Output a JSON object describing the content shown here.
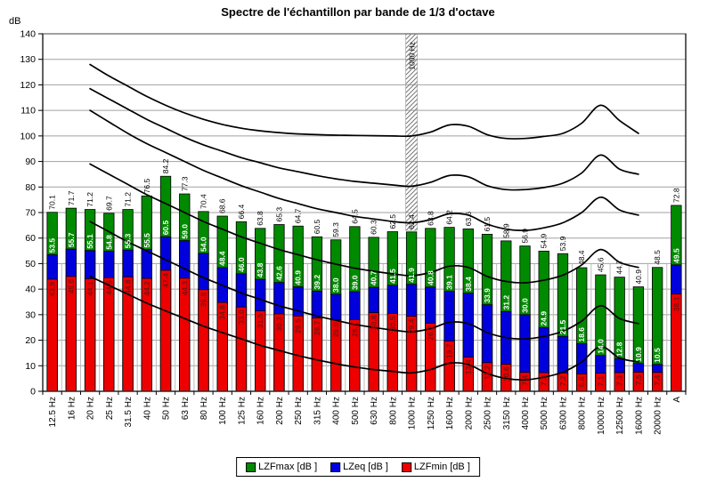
{
  "title": "Spectre de l'échantillon par bande de 1/3 d'octave",
  "y_axis": {
    "unit": "dB",
    "min": 0,
    "max": 140,
    "step": 10
  },
  "legend": [
    {
      "label": "LZFmax [dB ]",
      "color": "#008a00"
    },
    {
      "label": "LZeq [dB ]",
      "color": "#0000dd"
    },
    {
      "label": "LZFmin [dB ]",
      "color": "#ee0000"
    }
  ],
  "chart_data": {
    "type": "bar",
    "title": "Spectre de l'échantillon par bande de 1/3 d'octave",
    "ylabel": "dB",
    "xlabel": "",
    "ylim": [
      0,
      140
    ],
    "ytick_step": 10,
    "grid": true,
    "legend_position": "bottom",
    "bar_style": "overlaid: max behind, eq middle, min in front",
    "categories": [
      "12.5 Hz",
      "16 Hz",
      "20 Hz",
      "25 Hz",
      "31.5 Hz",
      "40 Hz",
      "50 Hz",
      "63 Hz",
      "80 Hz",
      "100 Hz",
      "125 Hz",
      "160 Hz",
      "200 Hz",
      "250 Hz",
      "315 Hz",
      "400 Hz",
      "500 Hz",
      "630 Hz",
      "800 Hz",
      "1000 Hz",
      "1250 Hz",
      "1600 Hz",
      "2000 Hz",
      "2500 Hz",
      "3150 Hz",
      "4000 Hz",
      "5000 Hz",
      "6300 Hz",
      "8000 Hz",
      "10000 Hz",
      "12500 Hz",
      "16000 Hz",
      "20000 Hz",
      "A"
    ],
    "series": [
      {
        "name": "LZFmax [dB ]",
        "color": "#008a00",
        "values": [
          70.1,
          71.7,
          71.2,
          69.7,
          71.2,
          76.5,
          84.2,
          77.3,
          70.4,
          68.6,
          66.4,
          63.8,
          65.3,
          64.7,
          60.5,
          59.3,
          64.5,
          60.3,
          62.5,
          62.4,
          63.8,
          64.2,
          63.6,
          61.5,
          58.9,
          56.9,
          54.9,
          53.9,
          48.4,
          45.6,
          44.7,
          40.9,
          48.5,
          72.8
        ]
      },
      {
        "name": "LZeq [dB ]",
        "color": "#0000dd",
        "values": [
          53.5,
          55.7,
          55.1,
          54.8,
          55.3,
          55.5,
          60.5,
          59.0,
          54.0,
          48.4,
          46.0,
          43.8,
          42.6,
          40.9,
          39.2,
          38.0,
          39.0,
          40.7,
          41.5,
          41.9,
          40.8,
          39.1,
          38.4,
          33.9,
          31.2,
          30.0,
          24.9,
          21.5,
          18.6,
          14.0,
          12.8,
          10.9,
          10.5,
          49.5
        ]
      },
      {
        "name": "LZFmin [dB ]",
        "color": "#ee0000",
        "values": [
          43.9,
          45.0,
          44.1,
          44.5,
          44.8,
          44.2,
          47.4,
          44.3,
          39.8,
          34.8,
          33.0,
          31.5,
          30.3,
          29.5,
          28.7,
          28.0,
          28.1,
          30.8,
          30.5,
          29.4,
          26.7,
          19.7,
          13.4,
          11.2,
          10.6,
          7.4,
          7.3,
          7.2,
          6.8,
          7.1,
          7.3,
          7.5,
          7.4,
          38.1
        ]
      }
    ],
    "highlight_band": {
      "category": "1000 Hz",
      "label": "1000 Hz",
      "from_db": 63,
      "to_db": 140,
      "style": "diagonal-hatch"
    },
    "overlay_curves": [
      {
        "points": [
          [
            2,
            128
          ],
          [
            3,
            123.5
          ],
          [
            4,
            119.5
          ],
          [
            5,
            115.5
          ],
          [
            6,
            112
          ],
          [
            7,
            109
          ],
          [
            8,
            106.5
          ],
          [
            9,
            104.5
          ],
          [
            10,
            103
          ],
          [
            11,
            102
          ],
          [
            12,
            101.3
          ],
          [
            13,
            100.8
          ],
          [
            14,
            100.5
          ],
          [
            15,
            100.3
          ],
          [
            16,
            100.2
          ],
          [
            17,
            100.1
          ],
          [
            18,
            100
          ],
          [
            19,
            100
          ],
          [
            20,
            101.5
          ],
          [
            21,
            104.3
          ],
          [
            22,
            103.8
          ],
          [
            23,
            100.5
          ],
          [
            24,
            99
          ],
          [
            25,
            99
          ],
          [
            26,
            99.8
          ],
          [
            27,
            101
          ],
          [
            28,
            105
          ],
          [
            29,
            112
          ],
          [
            30,
            106
          ],
          [
            31,
            101
          ]
        ]
      },
      {
        "points": [
          [
            2,
            118.5
          ],
          [
            3,
            114.5
          ],
          [
            4,
            110.5
          ],
          [
            5,
            106.5
          ],
          [
            6,
            103
          ],
          [
            7,
            99.5
          ],
          [
            8,
            96.5
          ],
          [
            9,
            94
          ],
          [
            10,
            91.5
          ],
          [
            11,
            89.5
          ],
          [
            12,
            87.5
          ],
          [
            13,
            86
          ],
          [
            14,
            84.5
          ],
          [
            15,
            83.2
          ],
          [
            16,
            82.2
          ],
          [
            17,
            81.5
          ],
          [
            18,
            80.8
          ],
          [
            19,
            80.3
          ],
          [
            20,
            81.8
          ],
          [
            21,
            84.5
          ],
          [
            22,
            84
          ],
          [
            23,
            80.5
          ],
          [
            24,
            79
          ],
          [
            25,
            79
          ],
          [
            26,
            79.8
          ],
          [
            27,
            81.5
          ],
          [
            28,
            85.5
          ],
          [
            29,
            92.5
          ],
          [
            30,
            87
          ],
          [
            31,
            85
          ]
        ]
      },
      {
        "points": [
          [
            2,
            110
          ],
          [
            3,
            105.5
          ],
          [
            4,
            101
          ],
          [
            5,
            97
          ],
          [
            6,
            93.5
          ],
          [
            7,
            90
          ],
          [
            8,
            86.5
          ],
          [
            9,
            83.5
          ],
          [
            10,
            80.5
          ],
          [
            11,
            78
          ],
          [
            12,
            75.5
          ],
          [
            13,
            73.5
          ],
          [
            14,
            71.5
          ],
          [
            15,
            70
          ],
          [
            16,
            68.5
          ],
          [
            17,
            67.5
          ],
          [
            18,
            66.5
          ],
          [
            19,
            66
          ],
          [
            20,
            67.2
          ],
          [
            21,
            69.5
          ],
          [
            22,
            69
          ],
          [
            23,
            65.5
          ],
          [
            24,
            63.5
          ],
          [
            25,
            63
          ],
          [
            26,
            64
          ],
          [
            27,
            66
          ],
          [
            28,
            70
          ],
          [
            29,
            76
          ],
          [
            30,
            71
          ],
          [
            31,
            69
          ]
        ]
      },
      {
        "points": [
          [
            2,
            89
          ],
          [
            3,
            85
          ],
          [
            4,
            81
          ],
          [
            5,
            77
          ],
          [
            6,
            73.5
          ],
          [
            7,
            70
          ],
          [
            8,
            66.5
          ],
          [
            9,
            63.5
          ],
          [
            10,
            60.5
          ],
          [
            11,
            58
          ],
          [
            12,
            55.5
          ],
          [
            13,
            53.5
          ],
          [
            14,
            51.5
          ],
          [
            15,
            49.8
          ],
          [
            16,
            48.2
          ],
          [
            17,
            47
          ],
          [
            18,
            46
          ],
          [
            19,
            45.3
          ],
          [
            20,
            46.5
          ],
          [
            21,
            49
          ],
          [
            22,
            48.5
          ],
          [
            23,
            45
          ],
          [
            24,
            43
          ],
          [
            25,
            42.5
          ],
          [
            26,
            43.5
          ],
          [
            27,
            45.5
          ],
          [
            28,
            49.5
          ],
          [
            29,
            55.5
          ],
          [
            30,
            50.5
          ],
          [
            31,
            48.5
          ]
        ]
      },
      {
        "points": [
          [
            2,
            66.5
          ],
          [
            3,
            62.5
          ],
          [
            4,
            58.5
          ],
          [
            5,
            55
          ],
          [
            6,
            51.5
          ],
          [
            7,
            48
          ],
          [
            8,
            44.5
          ],
          [
            9,
            41.5
          ],
          [
            10,
            38.5
          ],
          [
            11,
            36
          ],
          [
            12,
            33.5
          ],
          [
            13,
            31.5
          ],
          [
            14,
            29.5
          ],
          [
            15,
            27.8
          ],
          [
            16,
            26.2
          ],
          [
            17,
            25
          ],
          [
            18,
            24
          ],
          [
            19,
            23.3
          ],
          [
            20,
            24.5
          ],
          [
            21,
            27
          ],
          [
            22,
            26.5
          ],
          [
            23,
            23
          ],
          [
            24,
            21
          ],
          [
            25,
            20.5
          ],
          [
            26,
            21.5
          ],
          [
            27,
            23.5
          ],
          [
            28,
            27.5
          ],
          [
            29,
            33.5
          ],
          [
            30,
            28.5
          ],
          [
            31,
            26.5
          ]
        ]
      },
      {
        "points": [
          [
            2,
            45
          ],
          [
            3,
            41.5
          ],
          [
            4,
            38
          ],
          [
            5,
            34.5
          ],
          [
            6,
            31.5
          ],
          [
            7,
            28.5
          ],
          [
            8,
            25.5
          ],
          [
            9,
            23
          ],
          [
            10,
            20.5
          ],
          [
            11,
            18
          ],
          [
            12,
            16
          ],
          [
            13,
            14
          ],
          [
            14,
            12.3
          ],
          [
            15,
            10.8
          ],
          [
            16,
            9.5
          ],
          [
            17,
            8.5
          ],
          [
            18,
            7.8
          ],
          [
            19,
            7.2
          ],
          [
            20,
            8.5
          ],
          [
            21,
            11
          ],
          [
            22,
            10.5
          ],
          [
            23,
            7
          ],
          [
            24,
            5
          ],
          [
            25,
            4.5
          ],
          [
            26,
            5.5
          ],
          [
            27,
            7.5
          ],
          [
            28,
            11.5
          ],
          [
            29,
            17.5
          ],
          [
            30,
            13
          ],
          [
            31,
            11.5
          ]
        ]
      }
    ]
  }
}
